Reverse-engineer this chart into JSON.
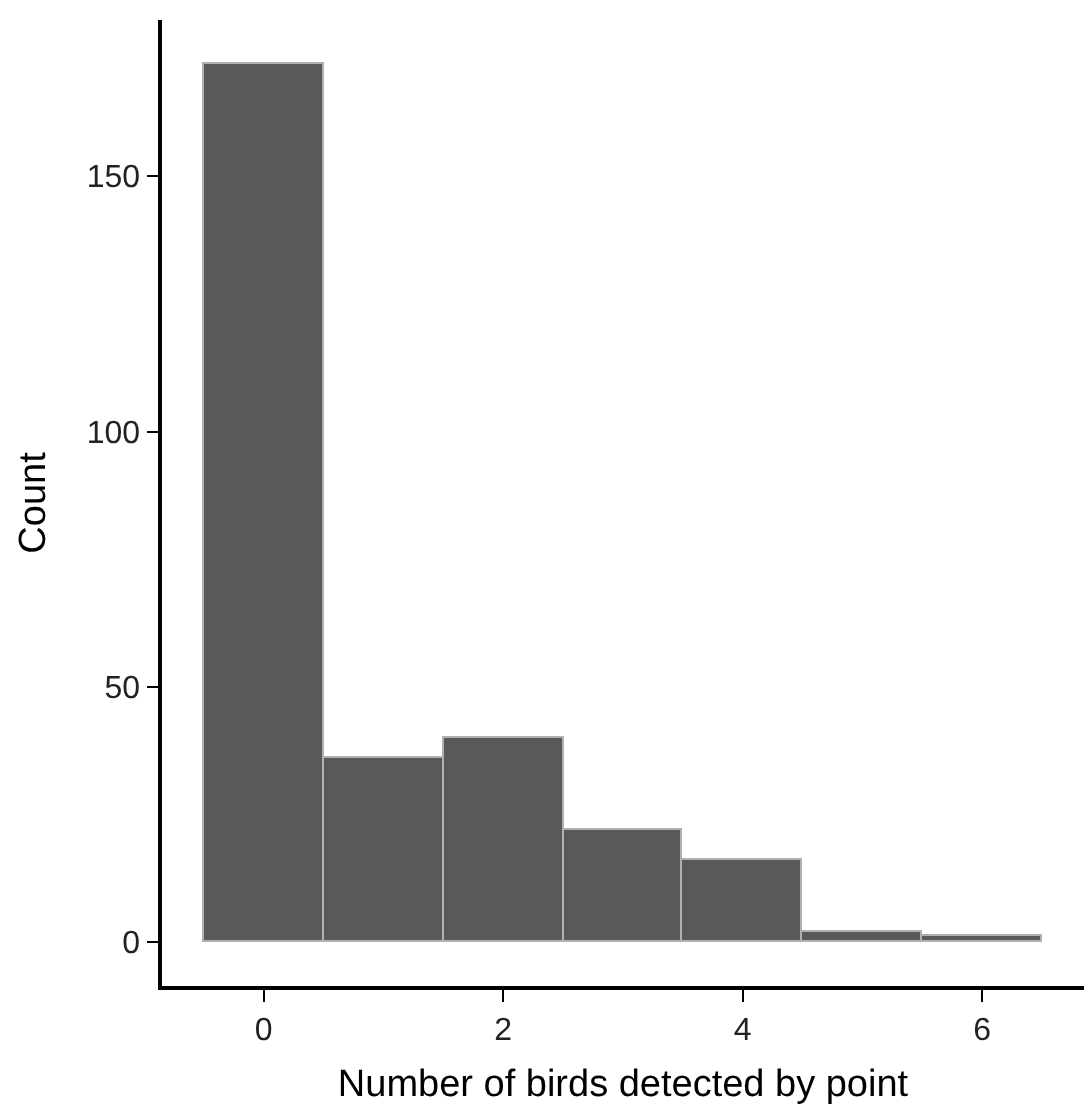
{
  "chart_data": {
    "type": "histogram",
    "xlabel": "Number of birds detected by point",
    "ylabel": "Count",
    "bins": [
      -0.5,
      0.5,
      1.5,
      2.5,
      3.5,
      4.5,
      5.5,
      6.5
    ],
    "values": [
      172,
      36,
      40,
      22,
      16,
      2,
      1
    ],
    "color": "#595959",
    "xlim": [
      -0.85,
      6.85
    ],
    "xticks": [
      0,
      2,
      4,
      6
    ],
    "ylim": [
      -8.6,
      180.6
    ],
    "yticks": [
      0,
      50,
      100,
      150
    ]
  }
}
